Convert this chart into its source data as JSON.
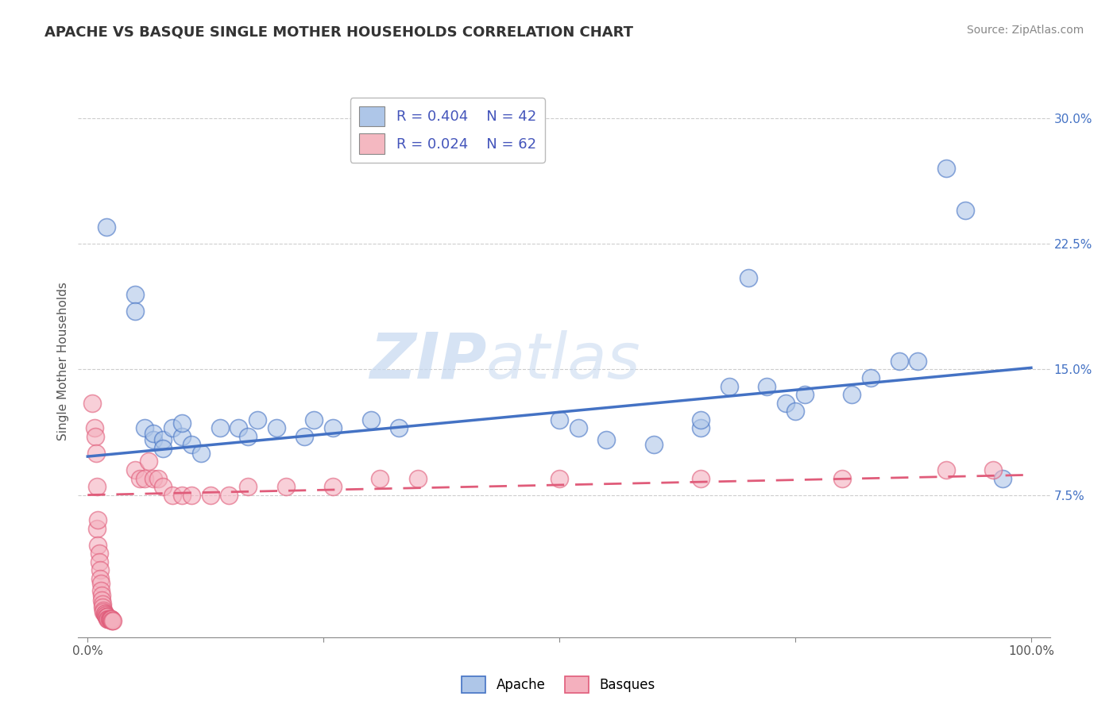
{
  "title": "APACHE VS BASQUE SINGLE MOTHER HOUSEHOLDS CORRELATION CHART",
  "source": "Source: ZipAtlas.com",
  "ylabel": "Single Mother Households",
  "xlabel": "",
  "watermark": "ZIPatlas",
  "xlim": [
    -0.01,
    1.02
  ],
  "ylim": [
    -0.01,
    0.32
  ],
  "xticks": [
    0.0,
    0.25,
    0.5,
    0.75,
    1.0
  ],
  "xticklabels": [
    "0.0%",
    "",
    "",
    "",
    "100.0%"
  ],
  "yticks": [
    0.075,
    0.15,
    0.225,
    0.3
  ],
  "yticklabels": [
    "7.5%",
    "15.0%",
    "22.5%",
    "30.0%"
  ],
  "legend_entries": [
    {
      "label": "R = 0.404    N = 42",
      "color": "#aec6e8",
      "series": "Apache"
    },
    {
      "label": "R = 0.024    N = 62",
      "color": "#f4b8c1",
      "series": "Basques"
    }
  ],
  "apache_color": "#aec6e8",
  "basque_color": "#f4b0be",
  "apache_line_color": "#4472C4",
  "basque_line_color": "#E05C7A",
  "apache_scatter": [
    [
      0.02,
      0.235
    ],
    [
      0.05,
      0.195
    ],
    [
      0.05,
      0.185
    ],
    [
      0.06,
      0.115
    ],
    [
      0.07,
      0.108
    ],
    [
      0.07,
      0.112
    ],
    [
      0.08,
      0.108
    ],
    [
      0.08,
      0.103
    ],
    [
      0.09,
      0.115
    ],
    [
      0.1,
      0.11
    ],
    [
      0.1,
      0.118
    ],
    [
      0.11,
      0.105
    ],
    [
      0.12,
      0.1
    ],
    [
      0.14,
      0.115
    ],
    [
      0.16,
      0.115
    ],
    [
      0.17,
      0.11
    ],
    [
      0.18,
      0.12
    ],
    [
      0.2,
      0.115
    ],
    [
      0.23,
      0.11
    ],
    [
      0.24,
      0.12
    ],
    [
      0.26,
      0.115
    ],
    [
      0.3,
      0.12
    ],
    [
      0.33,
      0.115
    ],
    [
      0.5,
      0.12
    ],
    [
      0.52,
      0.115
    ],
    [
      0.55,
      0.108
    ],
    [
      0.6,
      0.105
    ],
    [
      0.65,
      0.115
    ],
    [
      0.65,
      0.12
    ],
    [
      0.68,
      0.14
    ],
    [
      0.7,
      0.205
    ],
    [
      0.72,
      0.14
    ],
    [
      0.74,
      0.13
    ],
    [
      0.75,
      0.125
    ],
    [
      0.76,
      0.135
    ],
    [
      0.81,
      0.135
    ],
    [
      0.83,
      0.145
    ],
    [
      0.86,
      0.155
    ],
    [
      0.88,
      0.155
    ],
    [
      0.91,
      0.27
    ],
    [
      0.93,
      0.245
    ],
    [
      0.97,
      0.085
    ]
  ],
  "basque_scatter": [
    [
      0.005,
      0.13
    ],
    [
      0.007,
      0.115
    ],
    [
      0.008,
      0.11
    ],
    [
      0.009,
      0.1
    ],
    [
      0.01,
      0.08
    ],
    [
      0.01,
      0.055
    ],
    [
      0.011,
      0.06
    ],
    [
      0.011,
      0.045
    ],
    [
      0.012,
      0.04
    ],
    [
      0.012,
      0.035
    ],
    [
      0.013,
      0.03
    ],
    [
      0.013,
      0.025
    ],
    [
      0.014,
      0.022
    ],
    [
      0.014,
      0.018
    ],
    [
      0.015,
      0.015
    ],
    [
      0.015,
      0.012
    ],
    [
      0.016,
      0.01
    ],
    [
      0.016,
      0.008
    ],
    [
      0.017,
      0.006
    ],
    [
      0.017,
      0.005
    ],
    [
      0.018,
      0.004
    ],
    [
      0.018,
      0.004
    ],
    [
      0.019,
      0.003
    ],
    [
      0.019,
      0.003
    ],
    [
      0.02,
      0.002
    ],
    [
      0.02,
      0.002
    ],
    [
      0.021,
      0.002
    ],
    [
      0.021,
      0.001
    ],
    [
      0.022,
      0.001
    ],
    [
      0.022,
      0.001
    ],
    [
      0.023,
      0.001
    ],
    [
      0.023,
      0.001
    ],
    [
      0.024,
      0.001
    ],
    [
      0.024,
      0.001
    ],
    [
      0.025,
      0.001
    ],
    [
      0.025,
      0.001
    ],
    [
      0.025,
      0.001
    ],
    [
      0.026,
      0.0
    ],
    [
      0.026,
      0.0
    ],
    [
      0.027,
      0.0
    ],
    [
      0.05,
      0.09
    ],
    [
      0.055,
      0.085
    ],
    [
      0.06,
      0.085
    ],
    [
      0.065,
      0.095
    ],
    [
      0.07,
      0.085
    ],
    [
      0.075,
      0.085
    ],
    [
      0.08,
      0.08
    ],
    [
      0.09,
      0.075
    ],
    [
      0.1,
      0.075
    ],
    [
      0.11,
      0.075
    ],
    [
      0.13,
      0.075
    ],
    [
      0.15,
      0.075
    ],
    [
      0.17,
      0.08
    ],
    [
      0.21,
      0.08
    ],
    [
      0.26,
      0.08
    ],
    [
      0.31,
      0.085
    ],
    [
      0.35,
      0.085
    ],
    [
      0.5,
      0.085
    ],
    [
      0.65,
      0.085
    ],
    [
      0.8,
      0.085
    ],
    [
      0.91,
      0.09
    ],
    [
      0.96,
      0.09
    ]
  ],
  "title_fontsize": 13,
  "tick_fontsize": 11,
  "label_fontsize": 11,
  "source_fontsize": 10,
  "background_color": "#ffffff",
  "grid_color": "#c8c8c8"
}
